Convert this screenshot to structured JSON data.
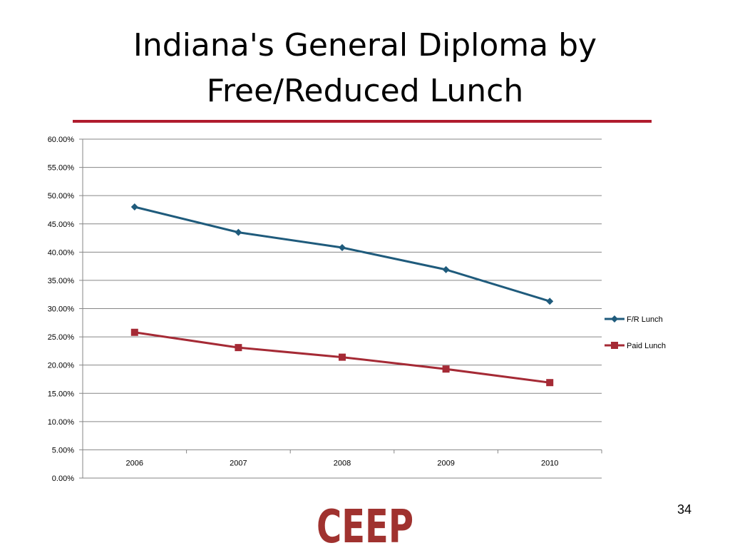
{
  "slide": {
    "title_line1": "Indiana's General Diploma by",
    "title_line2": "Free/Reduced Lunch",
    "page_number": "34",
    "logo_text": "CEEP"
  },
  "colors": {
    "rule": "#b01c2e",
    "fr_lunch": "#1f5b7c",
    "paid_lunch": "#a52a35",
    "grid": "#868686",
    "logo": "#a0322f"
  },
  "chart_data": {
    "type": "line",
    "categories": [
      "2006",
      "2007",
      "2008",
      "2009",
      "2010"
    ],
    "series": [
      {
        "name": "F/R Lunch",
        "values": [
          0.48,
          0.435,
          0.408,
          0.369,
          0.313
        ],
        "marker": "diamond"
      },
      {
        "name": "Paid Lunch",
        "values": [
          0.258,
          0.231,
          0.214,
          0.193,
          0.169
        ],
        "marker": "square"
      }
    ],
    "ylim": [
      0,
      0.6
    ],
    "ytick_labels": [
      "0.00%",
      "5.00%",
      "10.00%",
      "15.00%",
      "20.00%",
      "25.00%",
      "30.00%",
      "35.00%",
      "40.00%",
      "45.00%",
      "50.00%",
      "55.00%",
      "60.00%"
    ],
    "grid": true,
    "legend_position": "right",
    "xlabel": "",
    "ylabel": ""
  }
}
